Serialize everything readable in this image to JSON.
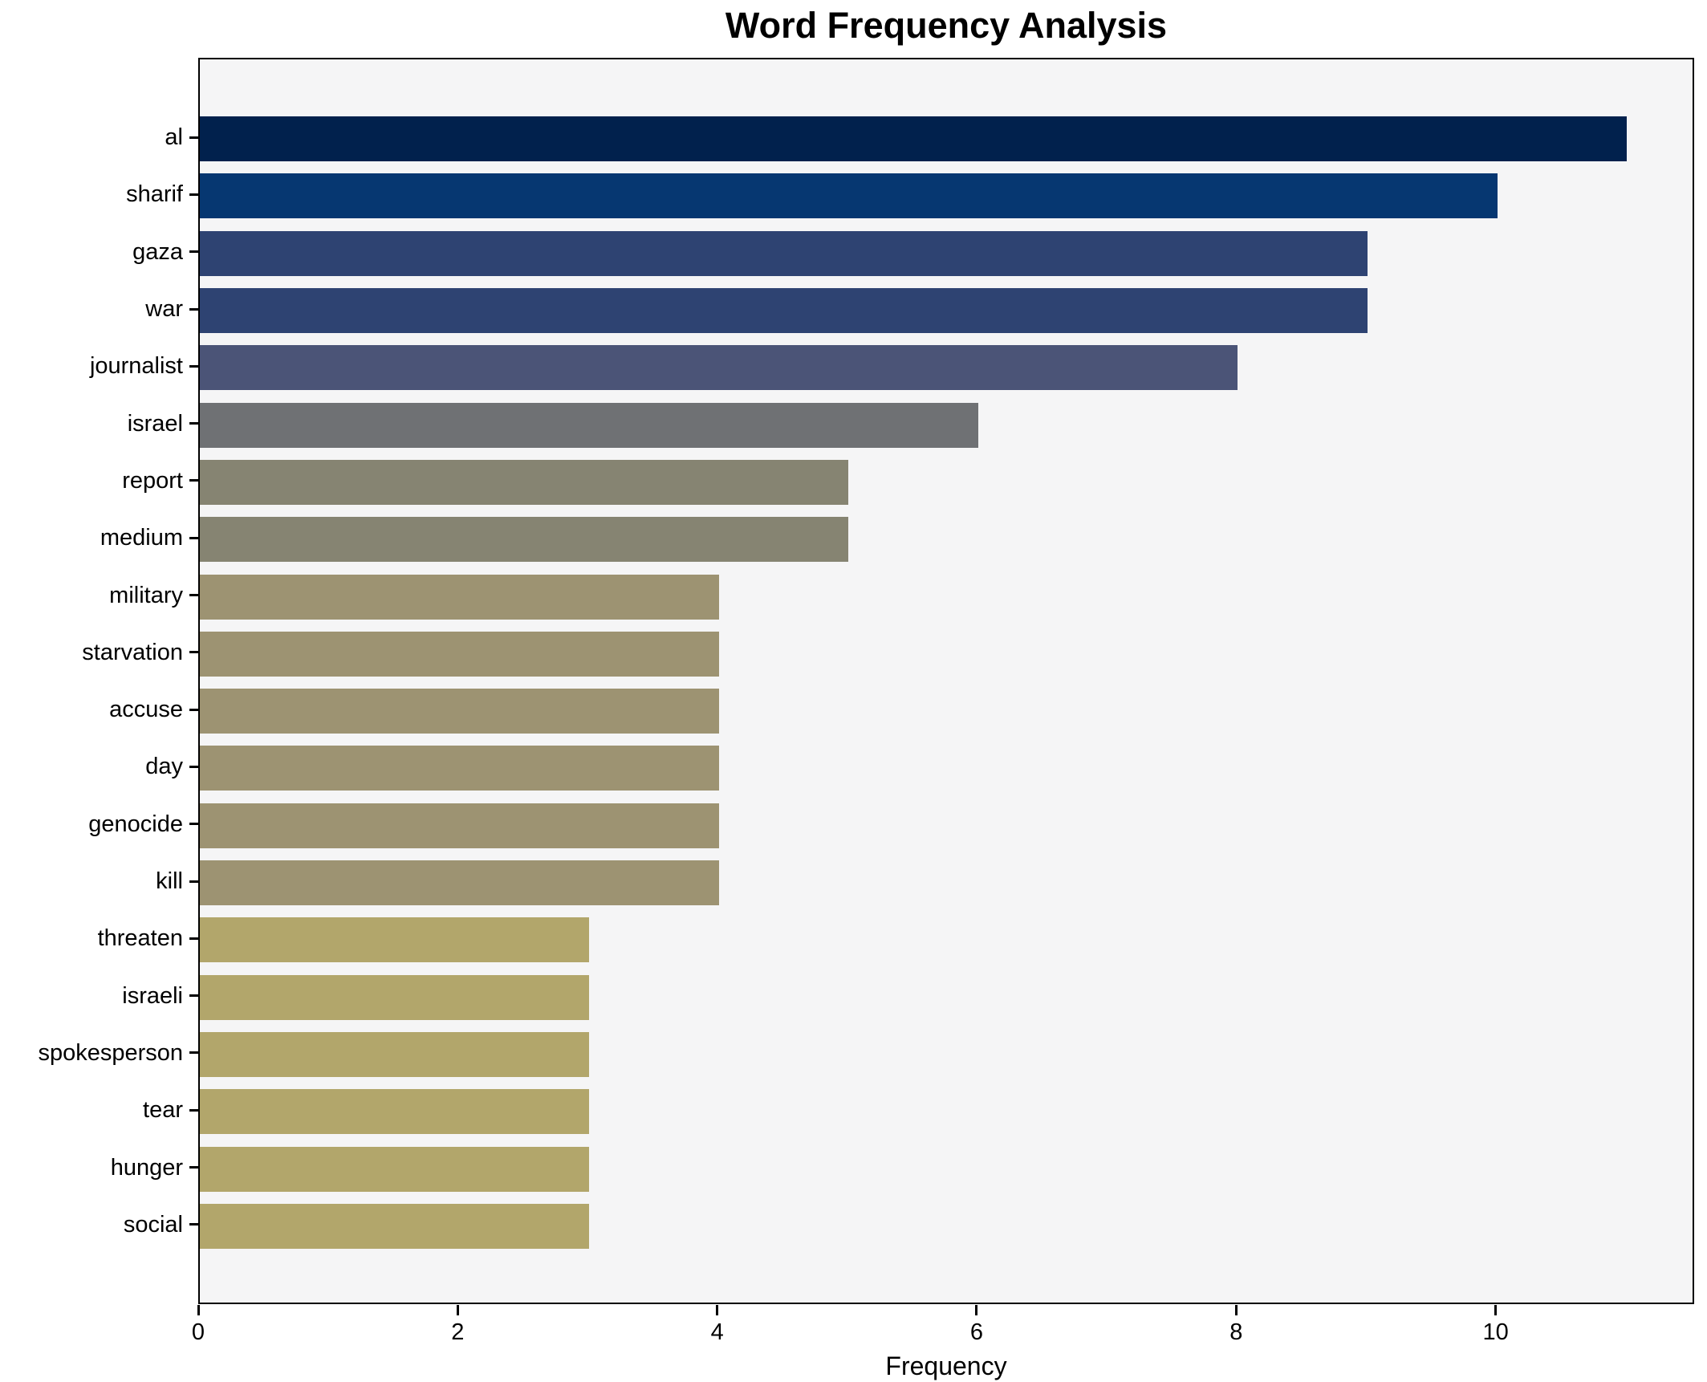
{
  "figure": {
    "background": "#ffffff",
    "plot_background": "#f5f5f6",
    "spine_color": "#000000"
  },
  "chart_data": {
    "type": "bar",
    "orientation": "horizontal",
    "title": "Word Frequency Analysis",
    "xlabel": "Frequency",
    "ylabel": "",
    "grid": false,
    "legend": false,
    "xlim": [
      0,
      11.53
    ],
    "x_ticks": [
      0,
      2,
      4,
      6,
      8,
      10
    ],
    "categories": [
      "al",
      "sharif",
      "gaza",
      "war",
      "journalist",
      "israel",
      "report",
      "medium",
      "military",
      "starvation",
      "accuse",
      "day",
      "genocide",
      "kill",
      "threaten",
      "israeli",
      "spokesperson",
      "tear",
      "hunger",
      "social"
    ],
    "values": [
      11,
      10,
      9,
      9,
      8,
      6,
      5,
      5,
      4,
      4,
      4,
      4,
      4,
      4,
      3,
      3,
      3,
      3,
      3,
      3
    ],
    "bar_colors": [
      "#01214d",
      "#063771",
      "#2e4372",
      "#2e4372",
      "#4b5477",
      "#6f7174",
      "#868472",
      "#868472",
      "#9d9372",
      "#9d9372",
      "#9d9372",
      "#9d9372",
      "#9d9372",
      "#9d9372",
      "#b2a66b",
      "#b2a66b",
      "#b2a66b",
      "#b2a66b",
      "#b2a66b",
      "#b2a66b"
    ]
  }
}
